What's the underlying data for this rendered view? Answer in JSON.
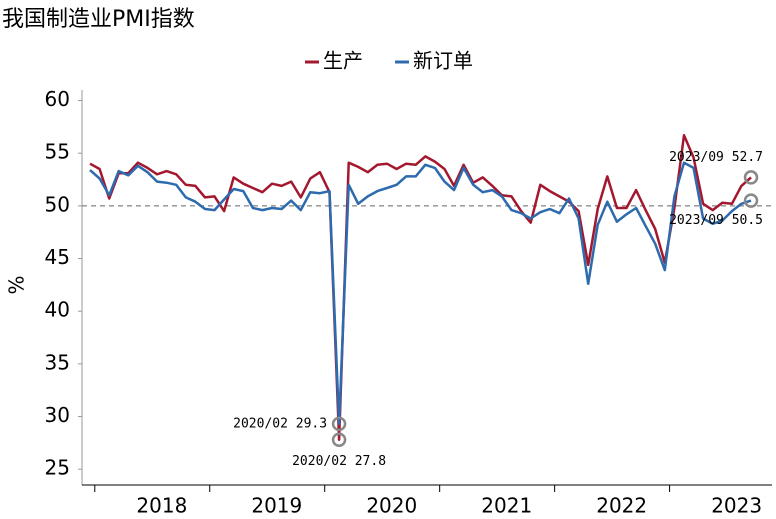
{
  "chart_data": {
    "type": "line",
    "title": "我国制造业PMI指数",
    "y_label": "%",
    "categories": [
      null,
      null,
      null,
      null,
      null,
      null,
      null,
      "2018",
      null,
      null,
      null,
      null,
      null,
      null,
      null,
      null,
      null,
      null,
      null,
      "2019",
      null,
      null,
      null,
      null,
      null,
      null,
      null,
      null,
      null,
      null,
      null,
      "2020",
      null,
      null,
      null,
      null,
      null,
      null,
      null,
      null,
      null,
      null,
      null,
      "2021",
      null,
      null,
      null,
      null,
      null,
      null,
      null,
      null,
      null,
      null,
      null,
      "2022",
      null,
      null,
      null,
      null,
      null,
      null,
      null,
      null,
      null,
      null,
      null,
      "2023",
      null,
      null
    ],
    "series": [
      {
        "name": "生产",
        "color": "#a3182e",
        "values": [
          54.0,
          53.5,
          50.7,
          53.1,
          53.1,
          54.1,
          53.6,
          53.0,
          53.3,
          53.0,
          52.0,
          51.9,
          50.8,
          50.9,
          49.5,
          52.7,
          52.1,
          51.7,
          51.3,
          52.1,
          51.9,
          52.3,
          50.8,
          52.6,
          53.2,
          51.3,
          27.8,
          54.1,
          53.7,
          53.2,
          53.9,
          54.0,
          53.5,
          54.0,
          53.9,
          54.7,
          54.2,
          53.5,
          51.9,
          53.9,
          52.2,
          52.7,
          51.9,
          51.0,
          50.9,
          49.5,
          48.4,
          52.0,
          51.4,
          50.9,
          50.4,
          49.5,
          44.4,
          49.7,
          52.8,
          49.8,
          49.8,
          51.5,
          49.6,
          47.8,
          44.6,
          49.8,
          56.7,
          54.6,
          50.2,
          49.6,
          50.3,
          50.2,
          51.9,
          52.7
        ],
        "value_labels": [
          null,
          null,
          null,
          null,
          null,
          null,
          null,
          null,
          null,
          null,
          null,
          null,
          null,
          null,
          null,
          null,
          null,
          null,
          null,
          null,
          null,
          null,
          null,
          null,
          null,
          null,
          "2020/02 27.8",
          null,
          null,
          null,
          null,
          null,
          null,
          null,
          null,
          null,
          null,
          null,
          null,
          null,
          null,
          null,
          null,
          null,
          null,
          null,
          null,
          null,
          null,
          null,
          null,
          null,
          null,
          null,
          null,
          null,
          null,
          null,
          null,
          null,
          null,
          null,
          null,
          null,
          null,
          null,
          null,
          null,
          null,
          "2023/09 52.7"
        ]
      },
      {
        "name": "新订单",
        "color": "#2d6aae",
        "values": [
          53.4,
          52.6,
          51.0,
          53.3,
          52.9,
          53.8,
          53.2,
          52.3,
          52.2,
          52.0,
          50.8,
          50.4,
          49.7,
          49.6,
          50.6,
          51.6,
          51.4,
          49.8,
          49.6,
          49.8,
          49.7,
          50.5,
          49.6,
          51.3,
          51.2,
          51.4,
          29.3,
          52.0,
          50.2,
          50.9,
          51.4,
          51.7,
          52.0,
          52.8,
          52.8,
          53.9,
          53.6,
          52.3,
          51.5,
          53.6,
          52.0,
          51.3,
          51.5,
          50.9,
          49.6,
          49.3,
          48.8,
          49.4,
          49.7,
          49.3,
          50.7,
          48.8,
          42.6,
          48.2,
          50.4,
          48.5,
          49.2,
          49.8,
          48.1,
          46.4,
          43.9,
          50.9,
          54.1,
          53.6,
          48.8,
          48.3,
          48.6,
          49.5,
          50.2,
          50.5
        ],
        "value_labels": [
          null,
          null,
          null,
          null,
          null,
          null,
          null,
          null,
          null,
          null,
          null,
          null,
          null,
          null,
          null,
          null,
          null,
          null,
          null,
          null,
          null,
          null,
          null,
          null,
          null,
          null,
          "2020/02 29.3",
          null,
          null,
          null,
          null,
          null,
          null,
          null,
          null,
          null,
          null,
          null,
          null,
          null,
          null,
          null,
          null,
          null,
          null,
          null,
          null,
          null,
          null,
          null,
          null,
          null,
          null,
          null,
          null,
          null,
          null,
          null,
          null,
          null,
          null,
          null,
          null,
          null,
          null,
          null,
          null,
          null,
          null,
          "2023/09 50.5"
        ]
      }
    ],
    "ylim": [
      23.5,
      61
    ],
    "yticks": [
      25,
      30,
      35,
      40,
      45,
      50,
      55,
      60
    ],
    "reference_line": 50,
    "legend": "top"
  }
}
